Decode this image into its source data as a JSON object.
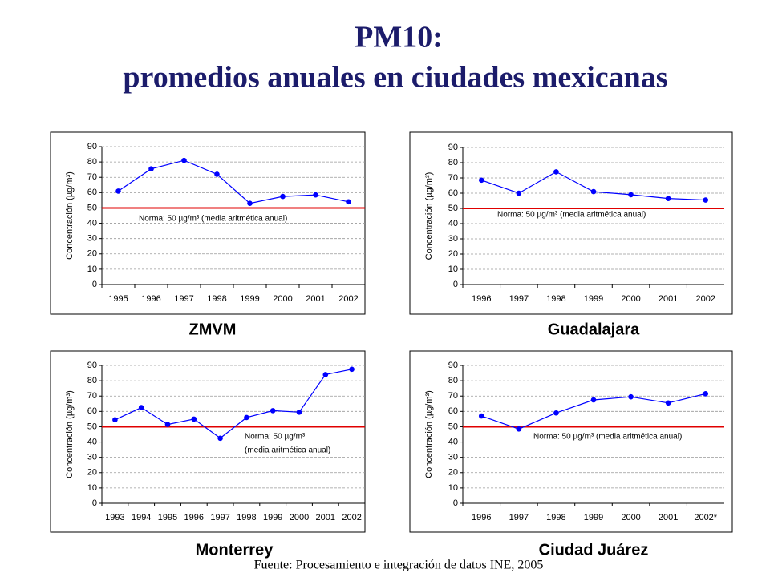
{
  "header": {
    "title": "PM10:",
    "subtitle": "promedios anuales en ciudades mexicanas"
  },
  "footer": "Fuente: Procesamiento e integración de datos INE, 2005",
  "chart_data": [
    {
      "type": "line",
      "caption": "ZMVM",
      "y_label": "Concentración (µg/m³)",
      "categories": [
        "1995",
        "1996",
        "1997",
        "1998",
        "1999",
        "2000",
        "2001",
        "2002"
      ],
      "values": [
        61,
        75.5,
        81,
        72,
        53,
        57.5,
        58.5,
        54
      ],
      "color": "#0000ff",
      "ylim": [
        0,
        90
      ],
      "yticks": [
        0,
        10,
        20,
        30,
        40,
        50,
        60,
        70,
        80,
        90
      ],
      "grid": true,
      "reference_line": {
        "value": 50,
        "color": "#e00000"
      },
      "annotation": [
        "Norma: 50 µg/m³ (media aritmética anual)"
      ]
    },
    {
      "type": "line",
      "caption": "Guadalajara",
      "y_label": "Concentración (µg/m³)",
      "categories": [
        "1996",
        "1997",
        "1998",
        "1999",
        "2000",
        "2001",
        "2002"
      ],
      "values": [
        68.5,
        60,
        74,
        61,
        59,
        56.5,
        55.5
      ],
      "color": "#0000ff",
      "ylim": [
        0,
        90
      ],
      "yticks": [
        0,
        10,
        20,
        30,
        40,
        50,
        60,
        70,
        80,
        90
      ],
      "grid": true,
      "reference_line": {
        "value": 50,
        "color": "#e00000"
      },
      "annotation": [
        "Norma: 50 µg/m³ (media aritmética anual)"
      ]
    },
    {
      "type": "line",
      "caption": "Monterrey",
      "y_label": "Concentración (µg/m³)",
      "categories": [
        "1993",
        "1994",
        "1995",
        "1996",
        "1997",
        "1998",
        "1999",
        "2000",
        "2001",
        "2002"
      ],
      "values": [
        54.5,
        62.5,
        51.5,
        55,
        42.5,
        56,
        60.5,
        59.5,
        84,
        87.5
      ],
      "color": "#0000ff",
      "ylim": [
        0,
        90
      ],
      "yticks": [
        0,
        10,
        20,
        30,
        40,
        50,
        60,
        70,
        80,
        90
      ],
      "grid": true,
      "reference_line": {
        "value": 50,
        "color": "#e00000"
      },
      "annotation": [
        "Norma: 50 µg/m³",
        "(media aritmética anual)"
      ]
    },
    {
      "type": "line",
      "caption": "Ciudad Juárez",
      "y_label": "Concentración (µg/m³)",
      "categories": [
        "1996",
        "1997",
        "1998",
        "1999",
        "2000",
        "2001",
        "2002*"
      ],
      "values": [
        57,
        48.5,
        59,
        67.5,
        69.5,
        65.5,
        71.5
      ],
      "color": "#0000ff",
      "ylim": [
        0,
        90
      ],
      "yticks": [
        0,
        10,
        20,
        30,
        40,
        50,
        60,
        70,
        80,
        90
      ],
      "grid": true,
      "reference_line": {
        "value": 50,
        "color": "#e00000"
      },
      "annotation": [
        "Norma: 50 µg/m³ (media aritmética anual)"
      ]
    }
  ]
}
